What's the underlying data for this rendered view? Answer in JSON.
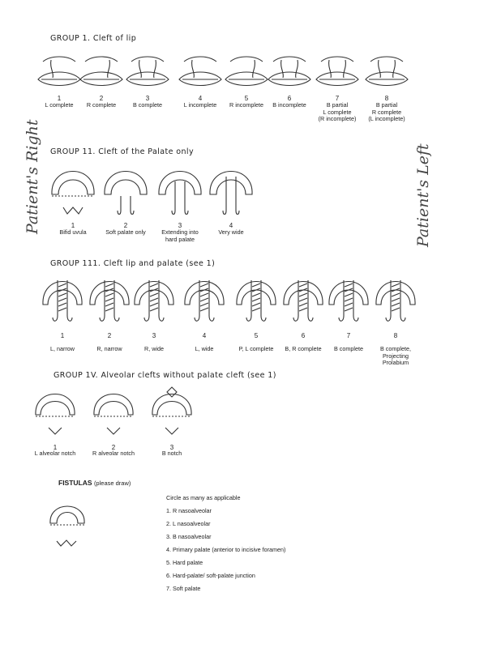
{
  "group1": {
    "title": "GROUP 1.  Cleft of lip",
    "items": [
      {
        "num": "1",
        "label": [
          "L complete"
        ]
      },
      {
        "num": "2",
        "label": [
          "R complete"
        ]
      },
      {
        "num": "3",
        "label": [
          "B complete"
        ]
      },
      {
        "num": "4",
        "label": [
          "L incomplete"
        ]
      },
      {
        "num": "5",
        "label": [
          "R incomplete"
        ]
      },
      {
        "num": "6",
        "label": [
          "B incomplete"
        ]
      },
      {
        "num": "7",
        "label": [
          "B partial",
          "L complete",
          "(R incomplete)"
        ]
      },
      {
        "num": "8",
        "label": [
          "B partial",
          "R complete",
          "(L incomplete)"
        ]
      }
    ]
  },
  "side_labels": {
    "left": "Patient's Right",
    "right": "Patient's Left"
  },
  "group2": {
    "title": "GROUP 11.  Cleft of the Palate only",
    "items": [
      {
        "num": "1",
        "label": [
          "Bifid uvula"
        ]
      },
      {
        "num": "2",
        "label": [
          "Soft palate only"
        ]
      },
      {
        "num": "3",
        "label": [
          "Extending into",
          "hard palate"
        ]
      },
      {
        "num": "4",
        "label": [
          "Very wide"
        ]
      }
    ]
  },
  "group3": {
    "title": "GROUP 111.  Cleft lip and palate (see 1)",
    "items": [
      {
        "num": "1",
        "label": [
          "L, narrow"
        ]
      },
      {
        "num": "2",
        "label": [
          "R, narrow"
        ]
      },
      {
        "num": "3",
        "label": [
          "R, wide"
        ]
      },
      {
        "num": "4",
        "label": [
          "L, wide"
        ]
      },
      {
        "num": "5",
        "label": [
          "P, L complete"
        ]
      },
      {
        "num": "6",
        "label": [
          "B, R complete"
        ]
      },
      {
        "num": "7",
        "label": [
          "B complete"
        ]
      },
      {
        "num": "8",
        "label": [
          "B complete,",
          "Projecting",
          "Prolabium"
        ]
      }
    ]
  },
  "group4": {
    "title": "GROUP 1V.  Alveolar clefts without palate  cleft  (see 1)",
    "items": [
      {
        "num": "1",
        "label": [
          "L alveolar notch"
        ]
      },
      {
        "num": "2",
        "label": [
          "R alveolar notch"
        ]
      },
      {
        "num": "3",
        "label": [
          "B notch"
        ]
      }
    ]
  },
  "fistulas": {
    "title": "FISTULAS",
    "subtitle": "(please draw)",
    "instruction": "Circle as many as applicable",
    "options": [
      "1. R nasoalveolar",
      "2. L nasoalveolar",
      "3. B nasoalveolar",
      "4. Primary palate (anterior to incisive foramen)",
      "5. Hard palate",
      "6. Hard-palate/ soft-palate junction",
      "7. Soft palate"
    ]
  }
}
